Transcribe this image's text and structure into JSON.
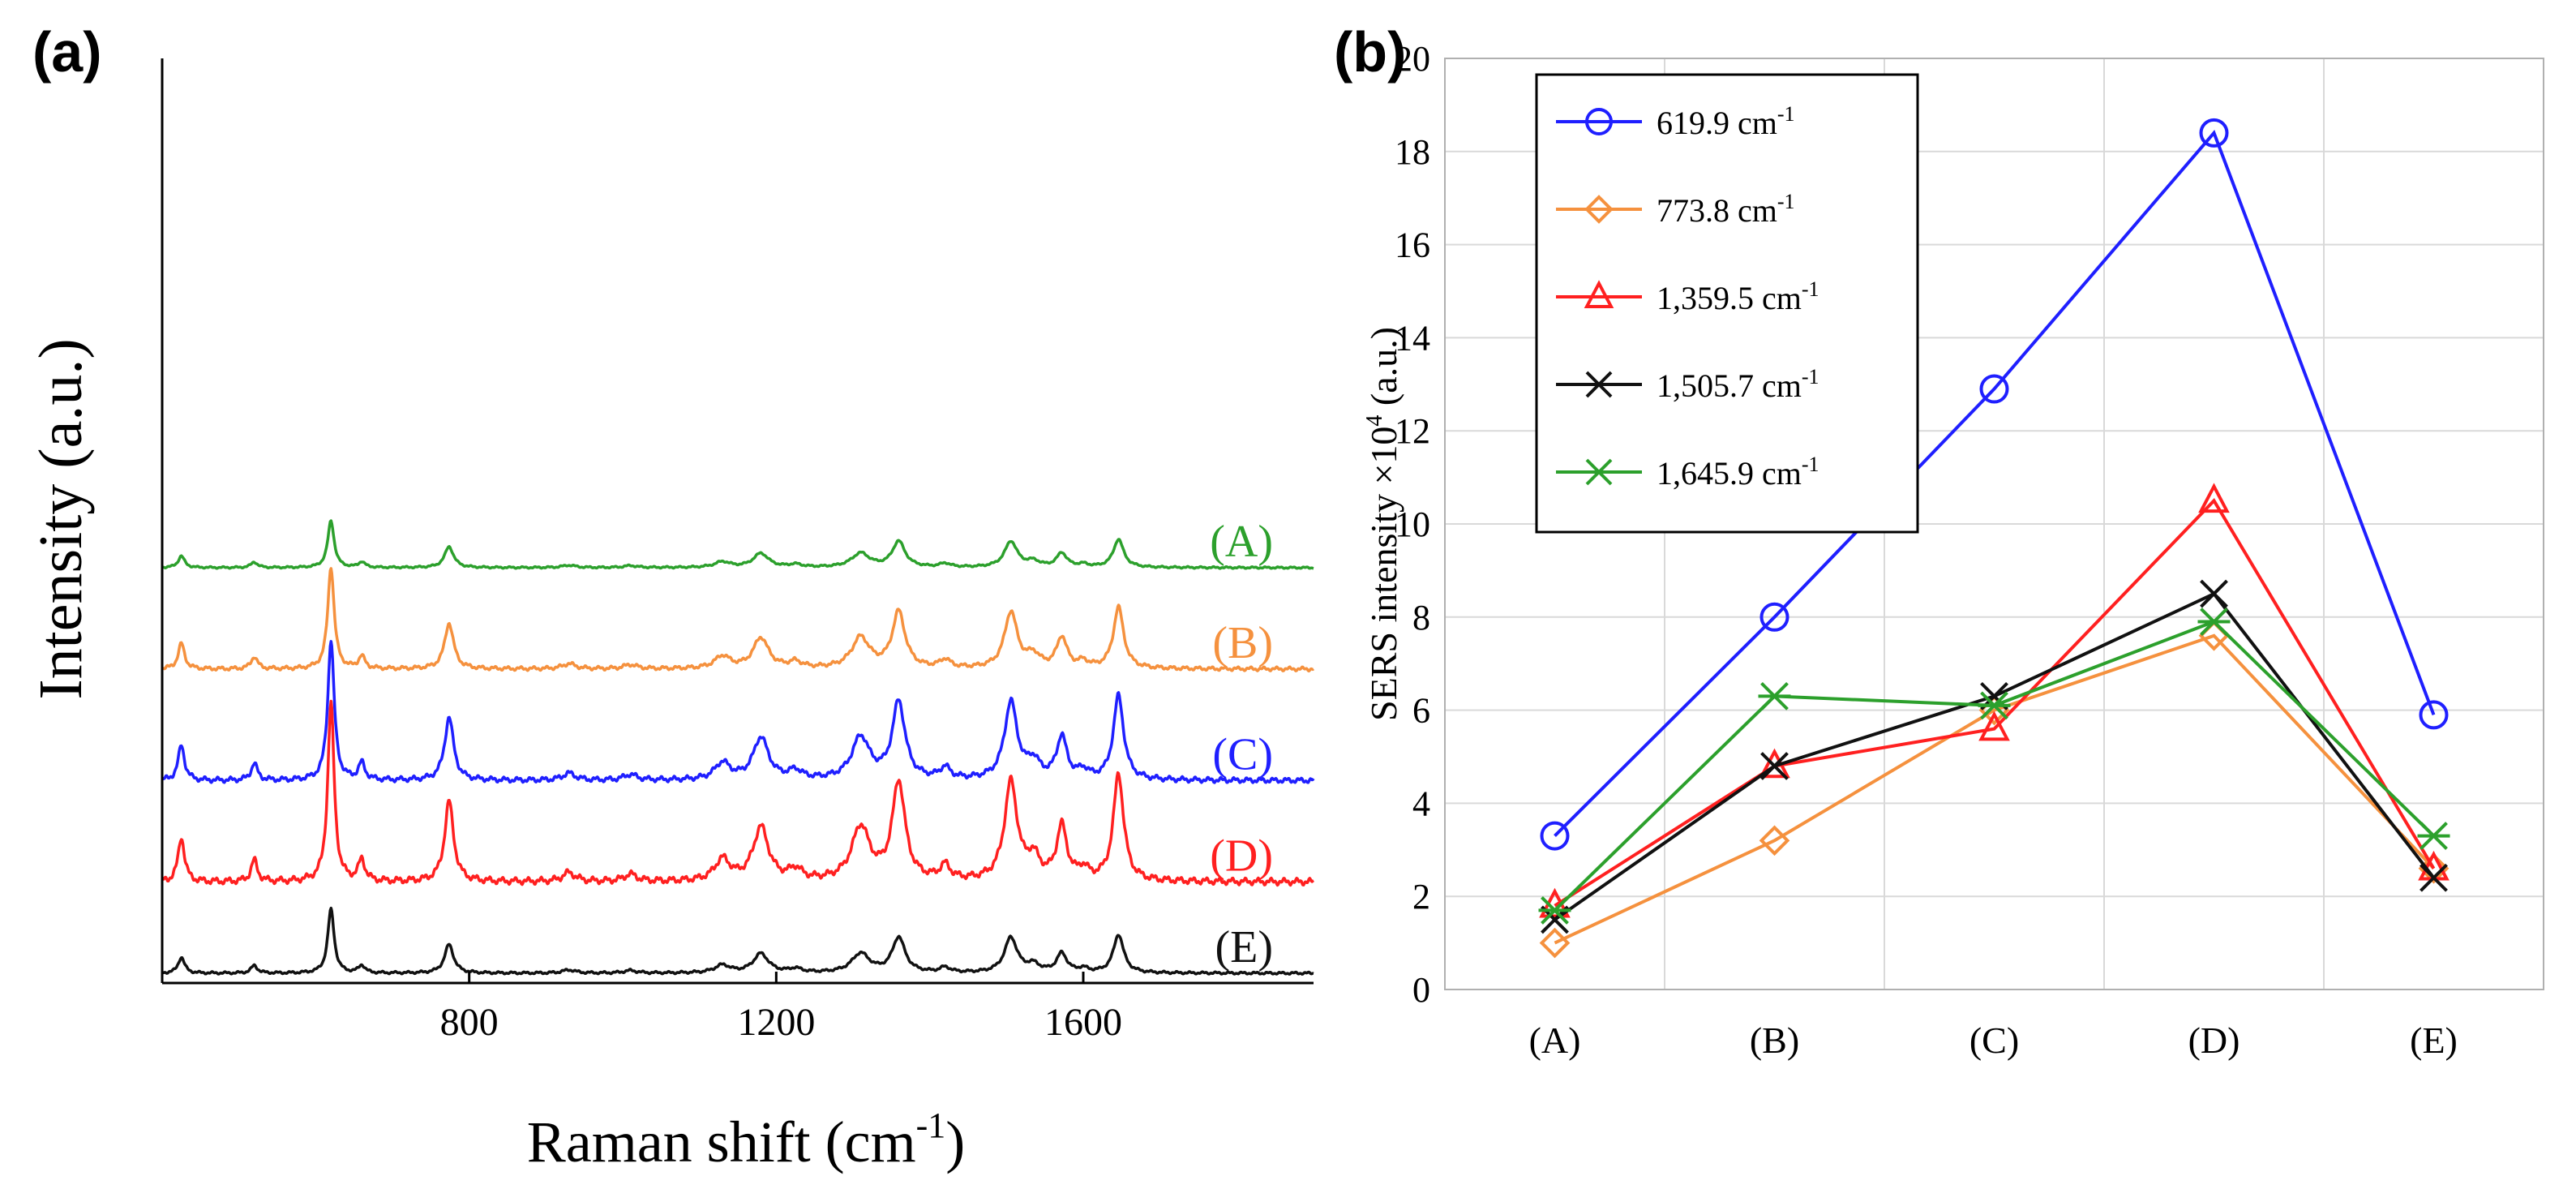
{
  "panel_labels": {
    "a": "(a)",
    "b": "(b)"
  },
  "chart_data": [
    {
      "type": "line",
      "title": "",
      "xlabel": "Raman shift (cm",
      "xlabel_sup": "-1",
      "xlabel_end": ")",
      "ylabel": "Intensity (a.u.)",
      "xlim": [
        400,
        1900
      ],
      "x_ticks": [
        800,
        1200,
        1600
      ],
      "x_tick_labels": [
        "800",
        "1200",
        "1600"
      ],
      "grid": false,
      "peaks": [
        {
          "center": 425,
          "width": 5,
          "rel": 0.25
        },
        {
          "center": 520,
          "width": 5,
          "rel": 0.12
        },
        {
          "center": 619.9,
          "width": 5,
          "rel": 1.0
        },
        {
          "center": 660,
          "width": 5,
          "rel": 0.12
        },
        {
          "center": 773.8,
          "width": 7,
          "rel": 0.45
        },
        {
          "center": 930,
          "width": 10,
          "rel": 0.05
        },
        {
          "center": 1010,
          "width": 10,
          "rel": 0.04
        },
        {
          "center": 1130,
          "width": 12,
          "rel": 0.12
        },
        {
          "center": 1180,
          "width": 12,
          "rel": 0.3
        },
        {
          "center": 1225,
          "width": 10,
          "rel": 0.06
        },
        {
          "center": 1310,
          "width": 14,
          "rel": 0.3
        },
        {
          "center": 1359.5,
          "width": 10,
          "rel": 0.55
        },
        {
          "center": 1420,
          "width": 8,
          "rel": 0.08
        },
        {
          "center": 1505.7,
          "width": 10,
          "rel": 0.55
        },
        {
          "center": 1535,
          "width": 10,
          "rel": 0.12
        },
        {
          "center": 1572,
          "width": 8,
          "rel": 0.3
        },
        {
          "center": 1600,
          "width": 8,
          "rel": 0.06
        },
        {
          "center": 1645.9,
          "width": 8,
          "rel": 0.6
        }
      ],
      "series": [
        {
          "name": "(A)",
          "label": "(A)",
          "color": "#2ca02c",
          "offset": 4.0,
          "scale": 0.55
        },
        {
          "name": "(B)",
          "label": "(B)",
          "color": "#f5913e",
          "offset": 3.0,
          "scale": 1.2
        },
        {
          "name": "(C)",
          "label": "(C)",
          "color": "#1f1fff",
          "offset": 1.9,
          "scale": 1.65
        },
        {
          "name": "(D)",
          "label": "(D)",
          "color": "#ff2020",
          "offset": 0.9,
          "scale": 2.1
        },
        {
          "name": "(E)",
          "label": "(E)",
          "color": "#111111",
          "offset": 0.0,
          "scale": 0.75
        }
      ]
    },
    {
      "type": "line",
      "title": "",
      "xlabel": "",
      "ylabel": "SERS intensity ×10",
      "ylabel_sup": "4",
      "ylabel_end": " (a.u.)",
      "ylim": [
        0,
        20
      ],
      "y_ticks": [
        0,
        2,
        4,
        6,
        8,
        10,
        12,
        14,
        16,
        18,
        20
      ],
      "y_tick_labels": [
        "0",
        "2",
        "4",
        "6",
        "8",
        "10",
        "12",
        "14",
        "16",
        "18",
        "20"
      ],
      "categories": [
        "(A)",
        "(B)",
        "(C)",
        "(D)",
        "(E)"
      ],
      "grid": true,
      "legend_position": "top-left",
      "series": [
        {
          "name": "619.9 cm-1",
          "label": "619.9  cm",
          "sup": "-1",
          "color": "#1f1fff",
          "marker": "circle",
          "values": [
            3.3,
            8.0,
            12.9,
            18.4,
            5.9
          ]
        },
        {
          "name": "773.8 cm-1",
          "label": "773.8  cm",
          "sup": "-1",
          "color": "#f5913e",
          "marker": "diamond",
          "values": [
            1.0,
            3.2,
            6.0,
            7.6,
            2.6
          ]
        },
        {
          "name": "1,359.5 cm-1",
          "label": "1,359.5  cm",
          "sup": "-1",
          "color": "#ff2020",
          "marker": "triangle",
          "values": [
            1.8,
            4.8,
            5.6,
            10.5,
            2.6
          ]
        },
        {
          "name": "1,505.7 cm-1",
          "label": "1,505.7  cm",
          "sup": "-1",
          "color": "#111111",
          "marker": "x",
          "values": [
            1.5,
            4.8,
            6.3,
            8.5,
            2.4
          ]
        },
        {
          "name": "1,645.9 cm-1",
          "label": "1,645.9  cm",
          "sup": "-1",
          "color": "#2ca02c",
          "marker": "asterisk",
          "values": [
            1.7,
            6.3,
            6.1,
            7.9,
            3.3
          ]
        }
      ]
    }
  ]
}
